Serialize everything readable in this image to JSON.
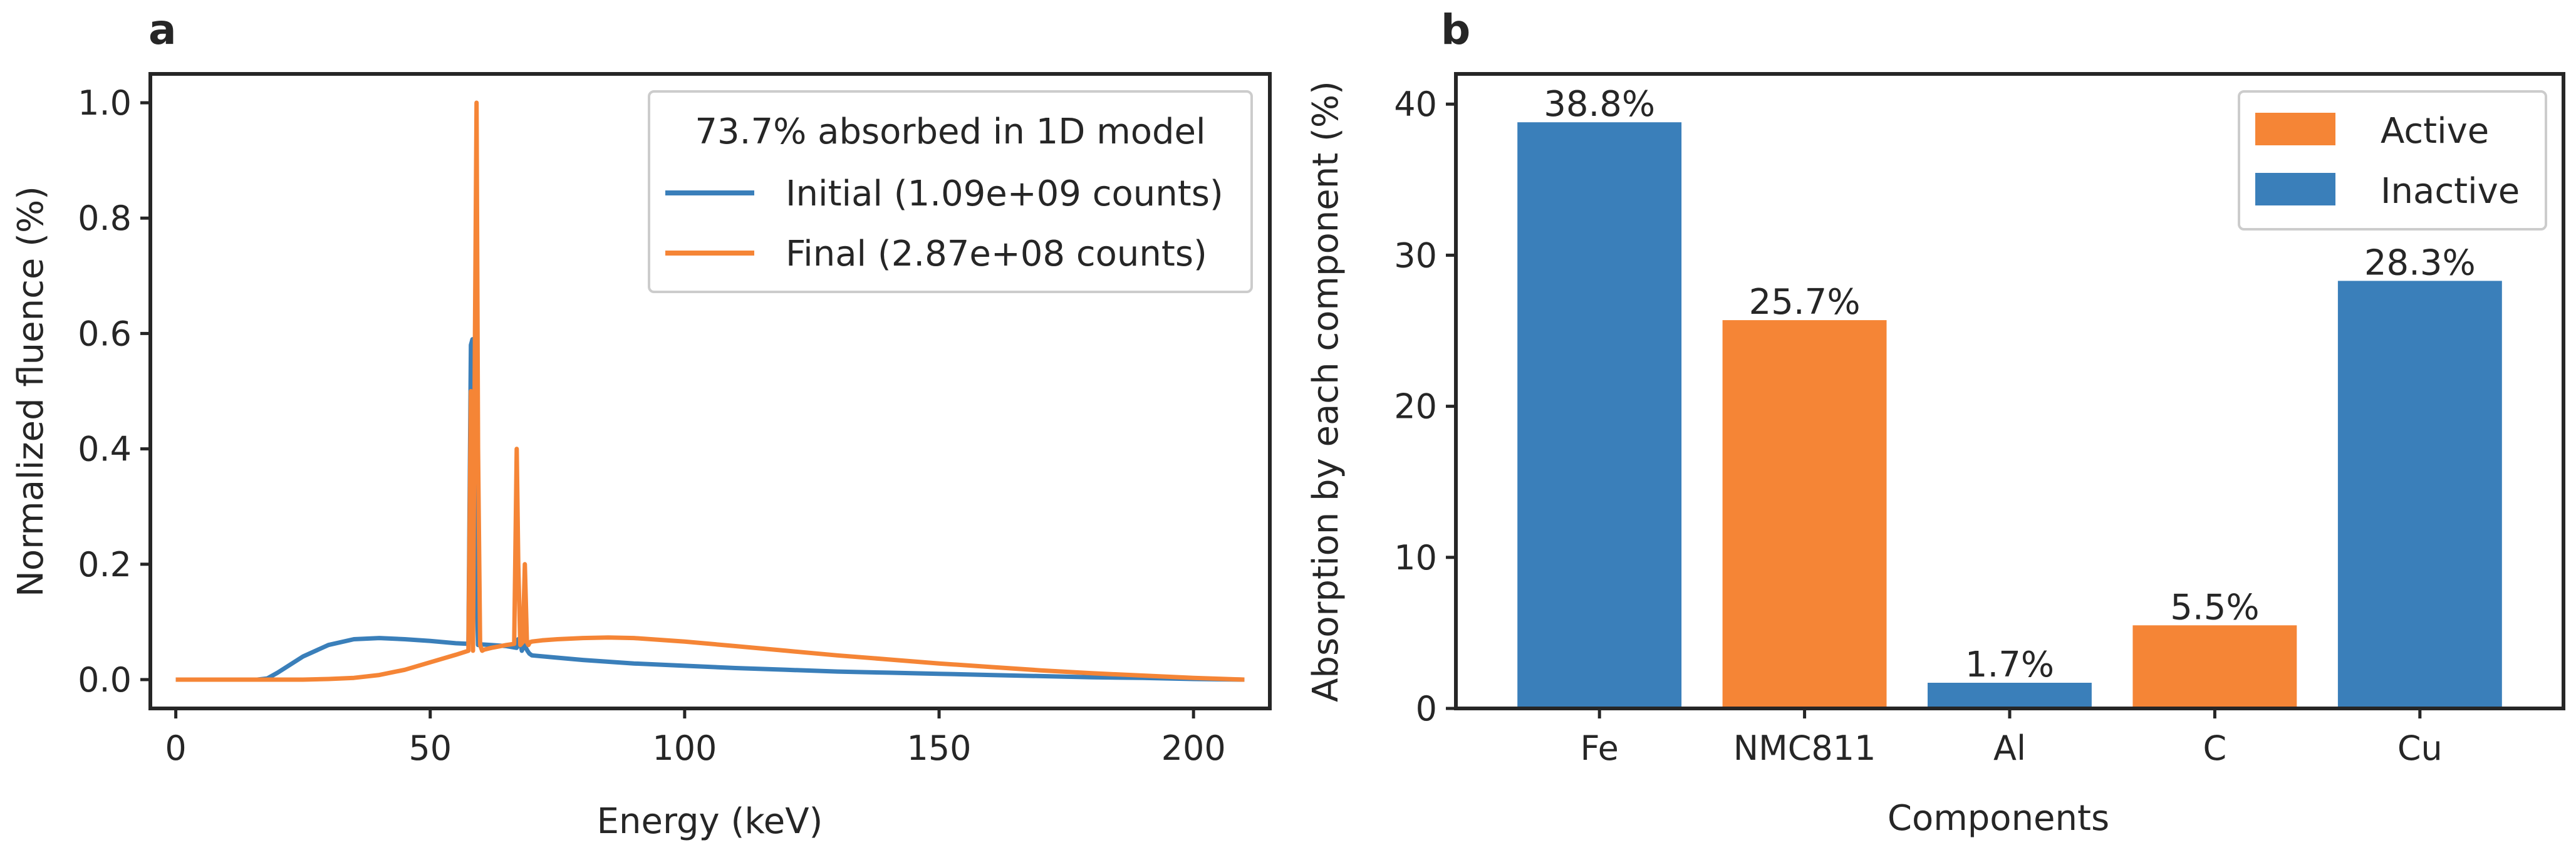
{
  "chart_data": [
    {
      "panel": "a",
      "type": "line",
      "title": "",
      "xlabel": "Energy (keV)",
      "ylabel": "Normalized fluence (%)",
      "xlim": [
        -5,
        215
      ],
      "ylim": [
        -0.05,
        1.05
      ],
      "xticks": [
        0,
        50,
        100,
        150,
        200
      ],
      "xtick_labels": [
        "0",
        "50",
        "100",
        "150",
        "200"
      ],
      "yticks": [
        0.0,
        0.2,
        0.4,
        0.6,
        0.8,
        1.0
      ],
      "ytick_labels": [
        "0.0",
        "0.2",
        "0.4",
        "0.6",
        "0.8",
        "1.0"
      ],
      "legend_title": "73.7% absorbed in 1D model",
      "legend_position": "top-right",
      "series": [
        {
          "name": "Initial (1.09e+09 counts)",
          "color": "#3a7fba",
          "x": [
            0,
            10,
            16,
            18,
            20,
            25,
            30,
            35,
            40,
            45,
            50,
            55,
            57.5,
            58,
            58.3,
            58.6,
            59,
            59.4,
            60,
            62,
            65,
            67,
            67.3,
            67.8,
            68,
            68.5,
            69.1,
            69.5,
            70,
            75,
            80,
            90,
            100,
            110,
            120,
            130,
            140,
            150,
            160,
            170,
            180,
            190,
            200,
            210
          ],
          "y": [
            0,
            0.0,
            0.0,
            0.002,
            0.012,
            0.04,
            0.06,
            0.07,
            0.072,
            0.07,
            0.067,
            0.063,
            0.062,
            0.58,
            0.59,
            0.55,
            0.2,
            0.06,
            0.061,
            0.06,
            0.058,
            0.055,
            0.07,
            0.06,
            0.05,
            0.06,
            0.05,
            0.045,
            0.042,
            0.038,
            0.034,
            0.028,
            0.024,
            0.02,
            0.017,
            0.014,
            0.012,
            0.01,
            0.008,
            0.006,
            0.004,
            0.003,
            0.001,
            0.0
          ]
        },
        {
          "name": "Final (2.87e+08 counts)",
          "color": "#f58536",
          "x": [
            0,
            10,
            20,
            25,
            30,
            35,
            40,
            45,
            50,
            55,
            57.5,
            58,
            58.4,
            58.8,
            59.1,
            59.4,
            59.8,
            60.2,
            60.6,
            62,
            65,
            66.5,
            67,
            67.3,
            67.7,
            68.2,
            68.6,
            69,
            69.3,
            69.6,
            70,
            72,
            75,
            80,
            85,
            90,
            100,
            110,
            120,
            130,
            140,
            150,
            160,
            170,
            180,
            190,
            200,
            210
          ],
          "y": [
            0,
            0.0,
            0.0,
            0.0,
            0.001,
            0.003,
            0.008,
            0.017,
            0.03,
            0.043,
            0.05,
            0.5,
            0.05,
            0.6,
            1.0,
            0.4,
            0.06,
            0.05,
            0.052,
            0.055,
            0.06,
            0.062,
            0.4,
            0.2,
            0.06,
            0.065,
            0.2,
            0.065,
            0.06,
            0.065,
            0.066,
            0.068,
            0.07,
            0.072,
            0.073,
            0.072,
            0.066,
            0.058,
            0.05,
            0.042,
            0.035,
            0.028,
            0.022,
            0.016,
            0.011,
            0.007,
            0.003,
            0.0
          ]
        }
      ]
    },
    {
      "panel": "b",
      "type": "bar",
      "title": "",
      "xlabel": "Components",
      "ylabel": "Absorption by each component (%)",
      "ylim": [
        0,
        42
      ],
      "yticks": [
        0,
        10,
        20,
        30,
        40
      ],
      "ytick_labels": [
        "0",
        "10",
        "20",
        "30",
        "40"
      ],
      "categories": [
        "Fe",
        "NMC811",
        "Al",
        "C",
        "Cu"
      ],
      "values": [
        38.8,
        25.7,
        1.7,
        5.5,
        28.3
      ],
      "value_labels": [
        "38.8%",
        "25.7%",
        "1.7%",
        "5.5%",
        "28.3%"
      ],
      "groups": [
        "Inactive",
        "Active",
        "Inactive",
        "Active",
        "Inactive"
      ],
      "legend": [
        {
          "name": "Active",
          "color": "#f58536"
        },
        {
          "name": "Inactive",
          "color": "#3a7fba"
        }
      ],
      "legend_position": "top-right"
    }
  ]
}
